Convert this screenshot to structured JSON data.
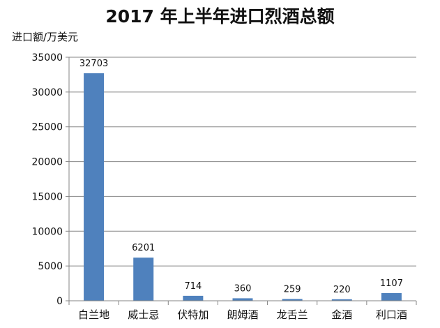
{
  "chart_data": {
    "type": "bar",
    "title": "2017 年上半年进口烈酒总额",
    "ylabel": "进口额/万美元",
    "xlabel": "",
    "categories": [
      "白兰地",
      "威士忌",
      "伏特加",
      "朗姆酒",
      "龙舌兰",
      "金酒",
      "利口酒"
    ],
    "values": [
      32703,
      6201,
      714,
      360,
      259,
      220,
      1107
    ],
    "data_labels": [
      "32703",
      "6201",
      "714",
      "360",
      "259",
      "220",
      "1107"
    ],
    "ylim": [
      0,
      35000
    ],
    "yticks": [
      0,
      5000,
      10000,
      15000,
      20000,
      25000,
      30000,
      35000
    ],
    "ytick_labels": [
      "0",
      "5000",
      "10000",
      "15000",
      "20000",
      "25000",
      "30000",
      "35000"
    ],
    "grid": true,
    "legend": false,
    "bar_color": "#4F81BD",
    "grid_color": "#868686"
  }
}
